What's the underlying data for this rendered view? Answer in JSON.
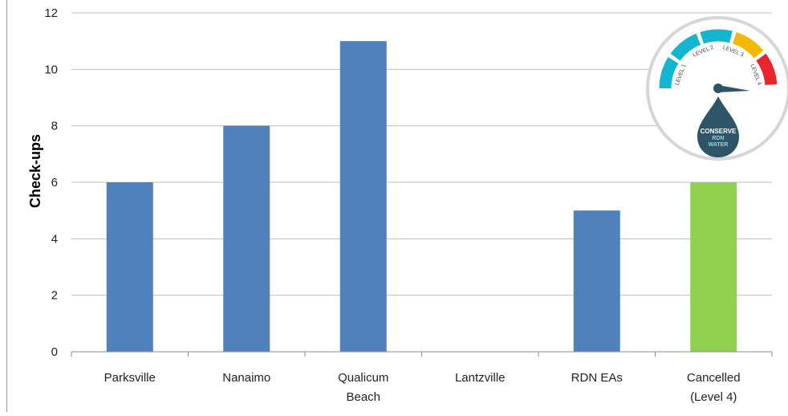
{
  "chart_data": {
    "type": "bar",
    "categories": [
      [
        "Parksville"
      ],
      [
        "Nanaimo"
      ],
      [
        "Qualicum",
        "Beach"
      ],
      [
        "Lantzville"
      ],
      [
        "RDN EAs"
      ],
      [
        "Cancelled",
        "(Level 4)"
      ]
    ],
    "values": [
      6,
      8,
      11,
      0,
      5,
      6
    ],
    "bar_colors": [
      "#4F81BD",
      "#4F81BD",
      "#4F81BD",
      "#4F81BD",
      "#4F81BD",
      "#92D050"
    ],
    "title": "",
    "xlabel": "",
    "ylabel": "Check-ups",
    "ylim": [
      0,
      12
    ],
    "yticks": [
      0,
      2,
      4,
      6,
      8,
      10,
      12
    ],
    "grid": true,
    "gridline_color": "#BFBFBF"
  },
  "gauge_logo": {
    "level_labels": [
      "LEVEL 1",
      "LEVEL 2",
      "LEVEL 3",
      "LEVEL 4"
    ],
    "level_colors": [
      "#14B5CF",
      "#14B5CF",
      "#F5B800",
      "#E8252A"
    ],
    "drop_text": [
      "CONSERVE",
      "RDN",
      "WATER"
    ],
    "drop_color": "#2E5567"
  }
}
